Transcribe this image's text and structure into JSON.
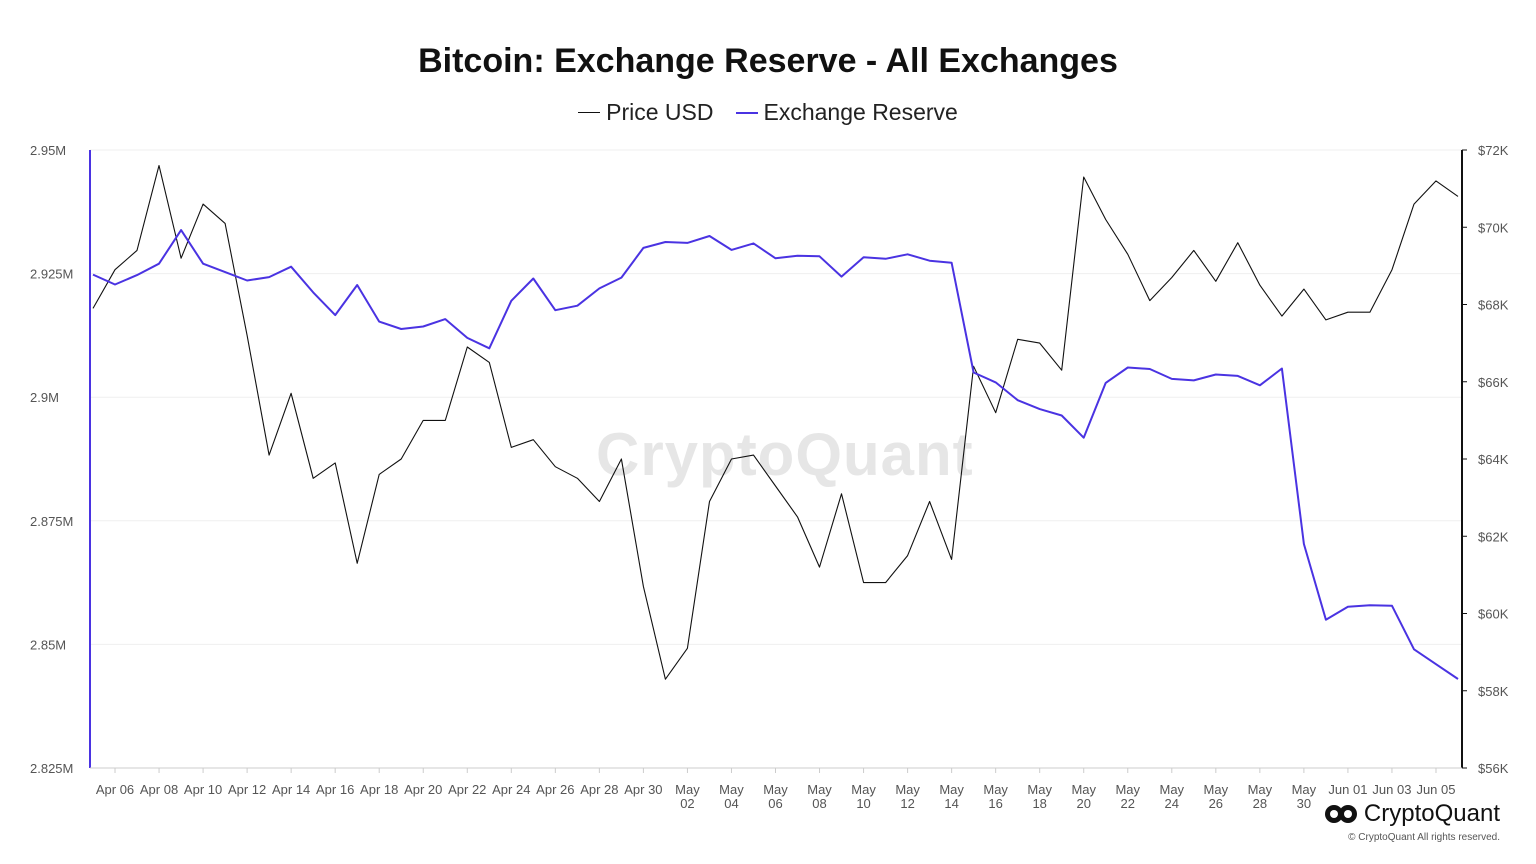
{
  "chart_data": {
    "type": "line",
    "title": "Bitcoin: Exchange Reserve - All Exchanges",
    "legend_position": "top-center",
    "grid": true,
    "x_tick_labels": [
      [
        "Apr 06"
      ],
      [
        "Apr 08"
      ],
      [
        "Apr 10"
      ],
      [
        "Apr 12"
      ],
      [
        "Apr 14"
      ],
      [
        "Apr 16"
      ],
      [
        "Apr 18"
      ],
      [
        "Apr 20"
      ],
      [
        "Apr 22"
      ],
      [
        "Apr 24"
      ],
      [
        "Apr 26"
      ],
      [
        "Apr 28"
      ],
      [
        "Apr 30"
      ],
      [
        "May",
        "02"
      ],
      [
        "May",
        "04"
      ],
      [
        "May",
        "06"
      ],
      [
        "May",
        "08"
      ],
      [
        "May",
        "10"
      ],
      [
        "May",
        "12"
      ],
      [
        "May",
        "14"
      ],
      [
        "May",
        "16"
      ],
      [
        "May",
        "18"
      ],
      [
        "May",
        "20"
      ],
      [
        "May",
        "22"
      ],
      [
        "May",
        "24"
      ],
      [
        "May",
        "26"
      ],
      [
        "May",
        "28"
      ],
      [
        "May",
        "30"
      ],
      [
        "Jun 01"
      ],
      [
        "Jun 03"
      ],
      [
        "Jun 05"
      ]
    ],
    "y_left_ticks": [
      "2.95M",
      "2.925M",
      "2.9M",
      "2.875M",
      "2.85M",
      "2.825M"
    ],
    "y_right_ticks": [
      "$72K",
      "$70K",
      "$68K",
      "$66K",
      "$64K",
      "$62K",
      "$60K",
      "$58K",
      "$56K"
    ],
    "y_left_range": [
      2825000,
      2950000
    ],
    "y_right_range": [
      56000,
      72000
    ],
    "x": [
      "04-05",
      "04-06",
      "04-07",
      "04-08",
      "04-09",
      "04-10",
      "04-11",
      "04-12",
      "04-13",
      "04-14",
      "04-15",
      "04-16",
      "04-17",
      "04-18",
      "04-19",
      "04-20",
      "04-21",
      "04-22",
      "04-23",
      "04-24",
      "04-25",
      "04-26",
      "04-27",
      "04-28",
      "04-29",
      "04-30",
      "05-01",
      "05-02",
      "05-03",
      "05-04",
      "05-05",
      "05-06",
      "05-07",
      "05-08",
      "05-09",
      "05-10",
      "05-11",
      "05-12",
      "05-13",
      "05-14",
      "05-15",
      "05-16",
      "05-17",
      "05-18",
      "05-19",
      "05-20",
      "05-21",
      "05-22",
      "05-23",
      "05-24",
      "05-25",
      "05-26",
      "05-27",
      "05-28",
      "05-29",
      "05-30",
      "05-31",
      "06-01",
      "06-02",
      "06-03",
      "06-04",
      "06-05",
      "06-06"
    ],
    "series": [
      {
        "name": "Price USD",
        "axis": "right",
        "color": "#111111",
        "values": [
          67900,
          68900,
          69400,
          71600,
          69200,
          70600,
          70100,
          67200,
          64100,
          65700,
          63500,
          63900,
          61300,
          63600,
          64000,
          65000,
          65000,
          66900,
          66500,
          64300,
          64500,
          63800,
          63500,
          62900,
          64000,
          60700,
          58300,
          59100,
          62900,
          64000,
          64100,
          63300,
          62500,
          61200,
          63100,
          60800,
          60800,
          61500,
          62900,
          61400,
          66400,
          65200,
          67100,
          67000,
          66300,
          71300,
          70200,
          69300,
          68100,
          68700,
          69400,
          68600,
          69600,
          68500,
          67700,
          68400,
          67600,
          67800,
          67800,
          68900,
          70600,
          71200,
          70800
        ]
      },
      {
        "name": "Exchange Reserve",
        "axis": "left",
        "color": "#4a33e2",
        "values": [
          2924800,
          2922800,
          2924700,
          2927000,
          2933800,
          2927000,
          2925300,
          2923600,
          2924300,
          2926400,
          2921200,
          2916600,
          2922700,
          2915300,
          2913800,
          2914300,
          2915800,
          2912000,
          2909900,
          2919500,
          2924000,
          2917600,
          2918500,
          2922000,
          2924200,
          2930200,
          2931400,
          2931200,
          2932600,
          2929800,
          2931100,
          2928100,
          2928600,
          2928500,
          2924400,
          2928300,
          2928000,
          2928900,
          2927600,
          2927200,
          2905000,
          2903000,
          2899400,
          2897600,
          2896300,
          2891800,
          2902900,
          2906000,
          2905700,
          2903700,
          2903400,
          2904600,
          2904300,
          2902400,
          2905800,
          2870300,
          2855000,
          2857600,
          2857900,
          2857800,
          2849000,
          2846000,
          2843000
        ]
      }
    ]
  },
  "watermark": "CryptoQuant",
  "brand": {
    "name": "CryptoQuant",
    "copyright": "© CryptoQuant All rights reserved."
  }
}
